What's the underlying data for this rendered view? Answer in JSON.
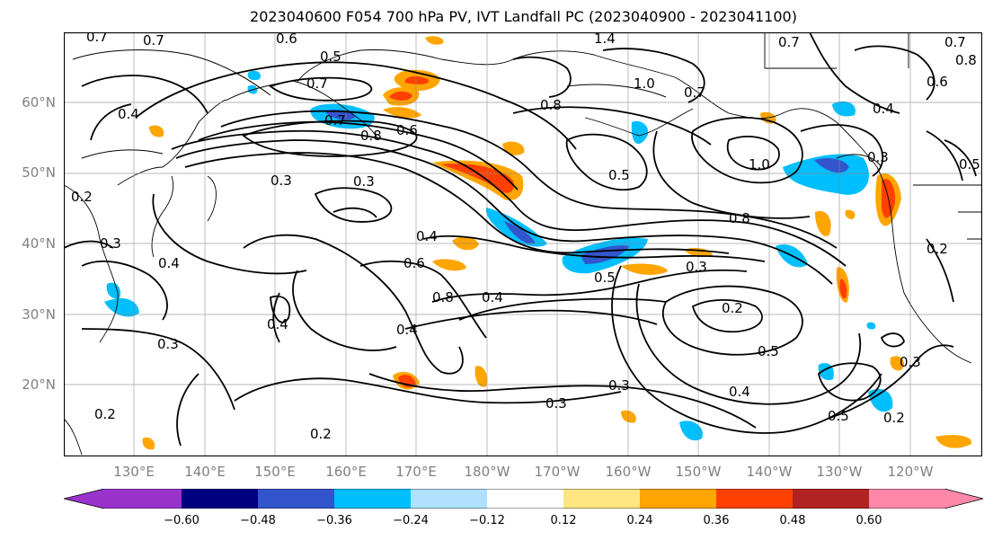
{
  "title": "2023040600 F054 700 hPa PV, IVT Landfall PC (2023040900 - 2023041100)",
  "lat_labels": [
    "60°N",
    "50°N",
    "40°N",
    "30°N",
    "20°N"
  ],
  "lon_labels": [
    "130°E",
    "140°E",
    "150°E",
    "160°E",
    "170°E",
    "180°W",
    "170°W",
    "160°W",
    "150°W",
    "140°W",
    "130°W",
    "120°W"
  ],
  "colorbar": {
    "ticks": [
      "−0.60",
      "−0.48",
      "−0.36",
      "−0.24",
      "−0.12",
      "0.12",
      "0.24",
      "0.36",
      "0.48",
      "0.60"
    ],
    "colors": [
      "#9933cc",
      "#000080",
      "#3355cc",
      "#00bfff",
      "#b0e0ff",
      "#ffffff",
      "#ffe680",
      "#ffa500",
      "#ff4000",
      "#b22222",
      "#ff88aa"
    ]
  },
  "contour_labels": [
    "0.7",
    "0.7",
    "0.6",
    "0.5",
    "1.4",
    "0.7",
    "0.7",
    "0.8",
    "0.6",
    "0.7",
    "1.0",
    "0.4",
    "0.7",
    "0.8",
    "0.6",
    "0.8",
    "0.7",
    "0.4",
    "0.3",
    "0.3",
    "0.5",
    "0.5",
    "0.2",
    "1.0",
    "0.3",
    "0.4",
    "0.8",
    "0.4",
    "0.6",
    "0.5",
    "0.3",
    "0.8",
    "0.4",
    "0.3",
    "0.2",
    "0.3",
    "0.5",
    "0.4",
    "0.3",
    "0.2",
    "0.5",
    "0.3",
    "0.2",
    "0.2",
    "0.4",
    "0.4",
    "0.3",
    "0.2"
  ]
}
